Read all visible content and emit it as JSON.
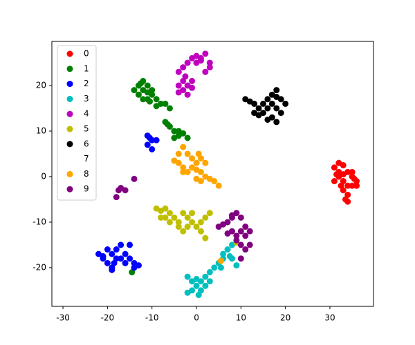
{
  "chart_data": {
    "type": "scatter",
    "xlim": [
      -32.5,
      39.8
    ],
    "ylim": [
      -28.5,
      29.7
    ],
    "xticks": [
      -30,
      -20,
      -10,
      0,
      10,
      20,
      30
    ],
    "yticks": [
      -20,
      -10,
      0,
      10,
      20
    ],
    "legend": "upper left",
    "series": [
      {
        "name": "0",
        "color": "#ff0000",
        "x": [
          31,
          32,
          33,
          34,
          32,
          33,
          35,
          36,
          34,
          33,
          34,
          33.5,
          35,
          31,
          32,
          36,
          35,
          34,
          32.5,
          31.5,
          35.5,
          33
        ],
        "values": [
          2,
          3,
          2.5,
          1,
          0,
          -1,
          0,
          -1,
          -2,
          -3,
          -4,
          -5,
          -2,
          -1,
          1,
          -2,
          1,
          -5.5,
          -2,
          0.5,
          -0.5,
          0.5
        ]
      },
      {
        "name": "1",
        "color": "#008000",
        "x": [
          -14,
          -13,
          -12,
          -11,
          -12,
          -10,
          -11,
          -9,
          -8,
          -7,
          -6,
          -13,
          -12,
          -10,
          -11,
          -9,
          -12.5,
          -10.5,
          -7,
          -6,
          -5,
          -4,
          -3,
          -5,
          -2,
          -6.5,
          -4,
          -14.5
        ],
        "values": [
          19,
          20,
          21,
          20,
          19,
          18,
          17,
          17,
          16,
          16,
          15,
          18,
          17,
          19,
          18.5,
          15.5,
          20.5,
          16.5,
          12,
          11,
          10,
          9,
          9.5,
          8.5,
          8.5,
          11.5,
          10,
          -21
        ]
      },
      {
        "name": "2",
        "color": "#0000ff",
        "x": [
          -11,
          -10,
          -11,
          -10,
          -9,
          -10.5,
          -22,
          -21,
          -20,
          -19,
          -18,
          -17,
          -16,
          -15,
          -14,
          -13,
          -20,
          -19,
          -19,
          -18,
          -16,
          -15,
          -17,
          -14,
          -21,
          -18.5
        ],
        "values": [
          9,
          8,
          7,
          6,
          8,
          8.5,
          -17,
          -18,
          -16,
          -17,
          -16,
          -18,
          -19,
          -18,
          -19,
          -19.5,
          -19,
          -20,
          -20.5,
          -18,
          -17,
          -15,
          -15,
          -20,
          -17.5,
          -19
        ]
      },
      {
        "name": "3",
        "color": "#00bfbf",
        "x": [
          -2,
          -1,
          0,
          1,
          2,
          3,
          4,
          5,
          6,
          7,
          8,
          9,
          7.5,
          1,
          0,
          -1,
          2,
          3,
          0.5,
          -2,
          5.5,
          8,
          6
        ],
        "values": [
          -25.5,
          -25,
          -24,
          -23,
          -22,
          -21,
          -20,
          -19,
          -17,
          -16,
          -18,
          -19.5,
          -17.5,
          -25,
          -22.5,
          -23,
          -24,
          -23,
          -26,
          -22,
          -20,
          -15,
          -18
        ]
      },
      {
        "name": "4",
        "color": "#bf00bf",
        "x": [
          -4,
          -3,
          -2,
          -1,
          0,
          1,
          2,
          3,
          3,
          2,
          1,
          -4,
          -3,
          -2,
          -1,
          -4,
          -2,
          -3,
          -1,
          0,
          -2.5
        ],
        "values": [
          23,
          24,
          25,
          26,
          25,
          26,
          27,
          25,
          24,
          23,
          25.5,
          20,
          19,
          20,
          21,
          18.5,
          18,
          21,
          19.5,
          26.5,
          22
        ]
      },
      {
        "name": "5",
        "color": "#bfbf00",
        "x": [
          -9,
          -8,
          -7,
          -6,
          -8,
          -7,
          -6,
          -5,
          -4,
          -3,
          -2,
          -1,
          0,
          1,
          2,
          3,
          -4,
          -2,
          -3,
          1,
          2,
          -1,
          9
        ],
        "values": [
          -7,
          -7.5,
          -7,
          -8,
          -9,
          -9,
          -10,
          -9,
          -10,
          -8,
          -9,
          -10,
          -11,
          -10,
          -9,
          -8,
          -11,
          -11,
          -12,
          -12,
          -13.5,
          -8,
          -14.5
        ]
      },
      {
        "name": "6",
        "color": "#000000",
        "x": [
          11,
          12,
          13,
          14,
          15,
          16,
          17,
          18,
          19,
          20,
          18,
          17,
          18,
          16,
          15,
          14,
          19,
          17,
          13,
          18,
          16
        ],
        "values": [
          17,
          16.5,
          16,
          15,
          16,
          17,
          18,
          19,
          17,
          16,
          15,
          13,
          12,
          12.5,
          14,
          13.5,
          14,
          16,
          14,
          17.5,
          15
        ]
      },
      {
        "name": "7",
        "color": "#ffffff",
        "x": [],
        "values": []
      },
      {
        "name": "8",
        "color": "#ffa500",
        "x": [
          -3,
          -4,
          -2,
          -1,
          0,
          1,
          2,
          -5,
          -4,
          -3,
          -2,
          -1,
          0,
          1,
          2,
          3,
          4,
          5,
          0,
          1,
          -3,
          0.5,
          5.5
        ],
        "values": [
          6.5,
          5,
          5,
          4,
          3,
          4,
          3,
          3.5,
          3,
          2,
          1,
          2,
          1.5,
          1,
          0,
          -0.5,
          -1,
          -2,
          -0.5,
          -1,
          1,
          5,
          -18.5
        ]
      },
      {
        "name": "9",
        "color": "#800080",
        "x": [
          -18,
          -17.5,
          -17,
          -16,
          -14,
          5,
          6,
          7,
          8,
          9,
          10,
          11,
          11,
          12,
          11,
          10,
          9,
          8,
          7,
          10,
          12,
          10,
          9,
          8
        ],
        "values": [
          -4.5,
          -3,
          -2.5,
          -3,
          -0.5,
          -11,
          -10.5,
          -10,
          -9,
          -8,
          -9,
          -11,
          -13,
          -15,
          -16,
          -15,
          -14,
          -12,
          -12.5,
          -12,
          -12,
          -18,
          -13,
          -8.5
        ]
      }
    ]
  }
}
